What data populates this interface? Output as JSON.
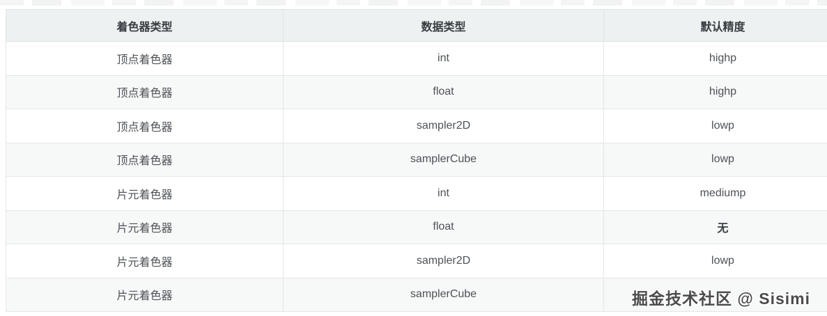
{
  "colors": {
    "header_bg": "#eef1f1",
    "stripe_bg": "#f7f8f8",
    "row_bg": "#ffffff",
    "border": "#e0e4e4",
    "header_text": "#353b41",
    "body_text": "#4d5156",
    "watermark_text": "#4b4b4b"
  },
  "watermark": {
    "text": "掘金技术社区 @ Sisimi"
  },
  "table": {
    "columns": [
      {
        "key": "shader",
        "label": "着色器类型"
      },
      {
        "key": "datatype",
        "label": "数据类型"
      },
      {
        "key": "precision",
        "label": "默认精度"
      }
    ],
    "rows": [
      {
        "shader": "顶点着色器",
        "datatype": "int",
        "precision": "highp",
        "precision_bold": false,
        "striped": false
      },
      {
        "shader": "顶点着色器",
        "datatype": "float",
        "precision": "highp",
        "precision_bold": false,
        "striped": true
      },
      {
        "shader": "顶点着色器",
        "datatype": "sampler2D",
        "precision": "lowp",
        "precision_bold": false,
        "striped": false
      },
      {
        "shader": "顶点着色器",
        "datatype": "samplerCube",
        "precision": "lowp",
        "precision_bold": false,
        "striped": true
      },
      {
        "shader": "片元着色器",
        "datatype": "int",
        "precision": "mediump",
        "precision_bold": false,
        "striped": false
      },
      {
        "shader": "片元着色器",
        "datatype": "float",
        "precision": "无",
        "precision_bold": true,
        "striped": true
      },
      {
        "shader": "片元着色器",
        "datatype": "sampler2D",
        "precision": "lowp",
        "precision_bold": false,
        "striped": false
      },
      {
        "shader": "片元着色器",
        "datatype": "samplerCube",
        "precision": "",
        "precision_bold": false,
        "striped": true
      }
    ]
  }
}
